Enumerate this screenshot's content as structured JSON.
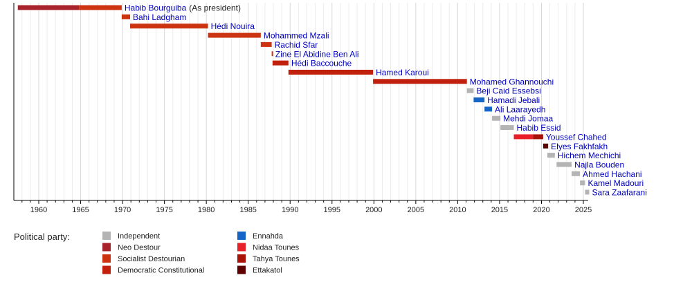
{
  "chart_data": {
    "type": "timeline",
    "xlim": [
      1957,
      2027
    ],
    "x_ticks": [
      1960,
      1965,
      1970,
      1975,
      1980,
      1985,
      1990,
      1995,
      2000,
      2005,
      2010,
      2015,
      2020,
      2025
    ],
    "grid": "vertical, yearly",
    "legend_title": "Political party:",
    "legend_placement": "bottom-left",
    "parties": [
      {
        "name": "Independent",
        "color": "#b4b4b4"
      },
      {
        "name": "Neo Destour",
        "color": "#a8242c"
      },
      {
        "name": "Socialist Destourian",
        "color": "#cc3311"
      },
      {
        "name": "Democratic Constitutional",
        "color": "#c0200c"
      },
      {
        "name": "Ennahda",
        "color": "#1565c8"
      },
      {
        "name": "Nidaa Tounes",
        "color": "#e8202a"
      },
      {
        "name": "Tahya Tounes",
        "color": "#a81208"
      },
      {
        "name": "Ettakatol",
        "color": "#5e0000"
      }
    ],
    "rows": [
      {
        "name": "Habib Bourguiba",
        "note": "(As president)",
        "segments": [
          {
            "start": 1957.5,
            "end": 1964.8,
            "party": "Neo Destour"
          },
          {
            "start": 1964.8,
            "end": 1969.9,
            "party": "Socialist Destourian"
          }
        ]
      },
      {
        "name": "Bahi Ladgham",
        "segments": [
          {
            "start": 1969.9,
            "end": 1970.9,
            "party": "Socialist Destourian"
          }
        ]
      },
      {
        "name": "Hédi Nouira",
        "segments": [
          {
            "start": 1970.9,
            "end": 1980.2,
            "party": "Socialist Destourian"
          }
        ]
      },
      {
        "name": "Mohammed Mzali",
        "segments": [
          {
            "start": 1980.2,
            "end": 1986.5,
            "party": "Socialist Destourian"
          }
        ]
      },
      {
        "name": "Rachid Sfar",
        "segments": [
          {
            "start": 1986.5,
            "end": 1987.8,
            "party": "Socialist Destourian"
          }
        ]
      },
      {
        "name": "Zine El Abidine Ben Ali",
        "segments": [
          {
            "start": 1987.8,
            "end": 1987.9,
            "party": "Socialist Destourian"
          }
        ]
      },
      {
        "name": "Hédi Baccouche",
        "segments": [
          {
            "start": 1987.9,
            "end": 1989.8,
            "party": "Democratic Constitutional"
          }
        ]
      },
      {
        "name": "Hamed Karoui",
        "segments": [
          {
            "start": 1989.8,
            "end": 1999.9,
            "party": "Democratic Constitutional"
          }
        ]
      },
      {
        "name": "Mohamed Ghannouchi",
        "segments": [
          {
            "start": 1999.9,
            "end": 2011.1,
            "party": "Democratic Constitutional"
          }
        ]
      },
      {
        "name": "Beji Caid Essebsi",
        "segments": [
          {
            "start": 2011.1,
            "end": 2011.9,
            "party": "Independent"
          }
        ]
      },
      {
        "name": "Hamadi Jebali",
        "segments": [
          {
            "start": 2011.9,
            "end": 2013.2,
            "party": "Ennahda"
          }
        ]
      },
      {
        "name": "Ali Laarayedh",
        "segments": [
          {
            "start": 2013.2,
            "end": 2014.1,
            "party": "Ennahda"
          }
        ]
      },
      {
        "name": "Mehdi Jomaa",
        "segments": [
          {
            "start": 2014.1,
            "end": 2015.1,
            "party": "Independent"
          }
        ]
      },
      {
        "name": "Habib Essid",
        "segments": [
          {
            "start": 2015.1,
            "end": 2016.7,
            "party": "Independent"
          }
        ]
      },
      {
        "name": "Youssef Chahed",
        "segments": [
          {
            "start": 2016.7,
            "end": 2019.0,
            "party": "Nidaa Tounes"
          },
          {
            "start": 2019.0,
            "end": 2020.2,
            "party": "Tahya Tounes"
          }
        ]
      },
      {
        "name": "Elyes Fakhfakh",
        "segments": [
          {
            "start": 2020.2,
            "end": 2020.8,
            "party": "Ettakatol"
          }
        ]
      },
      {
        "name": "Hichem Mechichi",
        "segments": [
          {
            "start": 2020.7,
            "end": 2021.6,
            "party": "Independent"
          }
        ]
      },
      {
        "name": "Najla Bouden",
        "segments": [
          {
            "start": 2021.8,
            "end": 2023.6,
            "party": "Independent"
          }
        ]
      },
      {
        "name": "Ahmed Hachani",
        "segments": [
          {
            "start": 2023.6,
            "end": 2024.6,
            "party": "Independent"
          }
        ]
      },
      {
        "name": "Kamel Madouri",
        "segments": [
          {
            "start": 2024.6,
            "end": 2025.2,
            "party": "Independent"
          }
        ]
      },
      {
        "name": "Sara Zaafarani",
        "segments": [
          {
            "start": 2025.2,
            "end": 2025.7,
            "party": "Independent"
          }
        ]
      }
    ]
  }
}
